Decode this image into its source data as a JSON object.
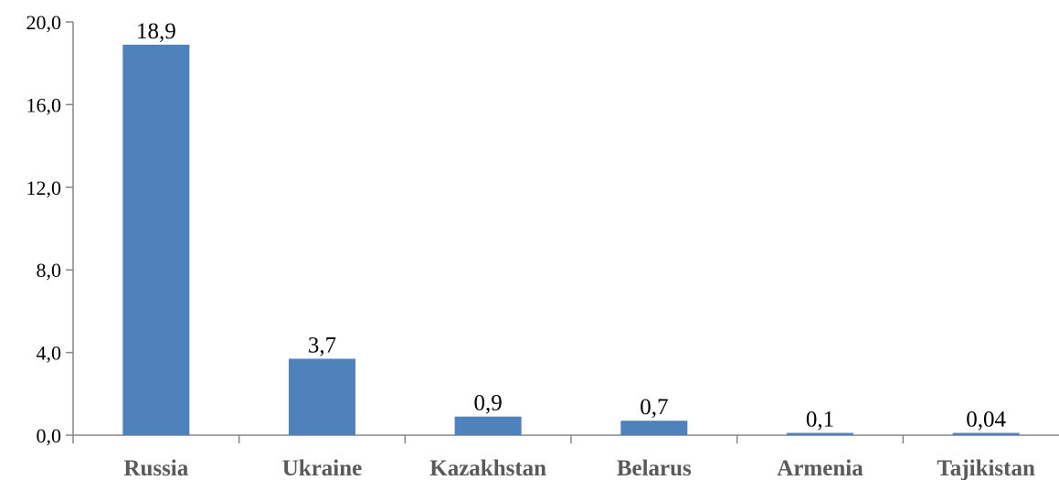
{
  "chart_data": {
    "type": "bar",
    "categories": [
      "Russia",
      "Ukraine",
      "Kazakhstan",
      "Belarus",
      "Armenia",
      "Tajikistan"
    ],
    "values": [
      18.9,
      3.7,
      0.9,
      0.7,
      0.1,
      0.04
    ],
    "data_labels": [
      "18,9",
      "3,7",
      "0,9",
      "0,7",
      "0,1",
      "0,04"
    ],
    "y_ticks": [
      0,
      4,
      8,
      12,
      16,
      20
    ],
    "y_tick_labels": [
      "0,0",
      "4,0",
      "8,0",
      "12,0",
      "16,0",
      "20,0"
    ],
    "ylim": [
      0,
      20
    ],
    "title": "",
    "xlabel": "",
    "ylabel": "",
    "grid": false,
    "legend": "none",
    "bar_color": "#4F81BD",
    "axis_color": "#868686"
  }
}
